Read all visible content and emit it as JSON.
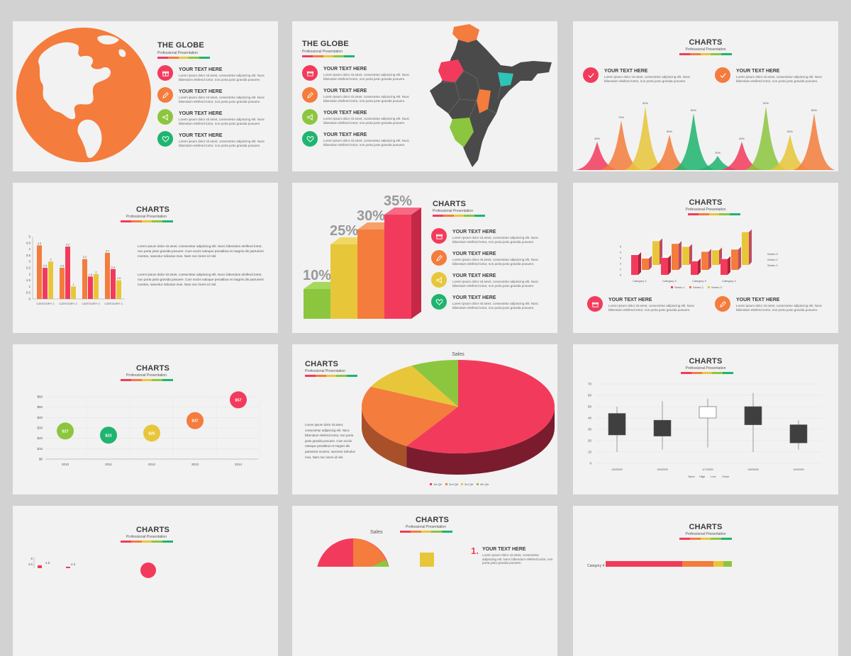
{
  "palette": {
    "red": "#f23b5c",
    "orange": "#f47c3c",
    "yellow": "#e8c63a",
    "green": "#8cc63e",
    "dgreen": "#1fb46f",
    "grey": "#4a4a4a"
  },
  "common": {
    "subtitle": "Professional Presentation",
    "item_title": "YOUR TEXT HERE",
    "item_body": "Lorem ipsum dolor sit amet, consectetur adipiscing elit. Nunc bibendum eleifend tortor, non porta justo gravida posuere.",
    "para": "Lorem ipsum dolor sit amet, consectetur adipiscing elit. Nunc bibendum eleifend tortor, non porta justo gravida posuere. Cum sociis natoque penatibus et magnis dis parturient montes, nascetur ridiculus mus. Nam nec lorem id nisl."
  },
  "slides": {
    "s1": {
      "title": "THE GLOBE"
    },
    "s2": {
      "title": "THE GLOBE"
    },
    "s3": {
      "title": "CHARTS",
      "chart_data": {
        "type": "area",
        "labels": [
          "40%",
          "70%",
          "90%",
          "50%",
          "80%",
          "20%",
          "40%",
          "90%",
          "50%",
          "80%"
        ],
        "values": [
          40,
          70,
          90,
          50,
          80,
          20,
          40,
          90,
          50,
          80
        ]
      }
    },
    "s4": {
      "title": "CHARTS",
      "chart_data": {
        "type": "bar",
        "categories": [
          "CATEGORY 1",
          "CATEGORY 2",
          "CATEGORY 3",
          "CATEGORY 4"
        ],
        "series": [
          {
            "values": [
              4.3,
              2.5,
              3.2,
              3.7
            ]
          },
          {
            "values": [
              2.5,
              4.2,
              1.8,
              2.4
            ]
          },
          {
            "values": [
              3,
              1,
              2,
              1.5
            ]
          }
        ],
        "value_labels": [
          [
            "4.3",
            "2.5",
            "3"
          ],
          [
            "2.5",
            "4.2",
            "1"
          ],
          [
            "3.2",
            "1.8",
            "2"
          ],
          [
            "3.7",
            "2.4",
            "1.5"
          ]
        ],
        "yticks": [
          "5",
          "4.5",
          "4",
          "3.5",
          "3",
          "2.5",
          "2",
          "1.5",
          "1",
          "0.5",
          "0"
        ],
        "ylim": [
          0,
          5
        ]
      }
    },
    "s5": {
      "title": "CHARTS",
      "chart_data": {
        "type": "bar",
        "labels": [
          "10%",
          "25%",
          "30%",
          "35%"
        ],
        "values": [
          10,
          25,
          30,
          35
        ]
      }
    },
    "s6": {
      "title": "CHARTS",
      "chart_data": {
        "type": "bar",
        "categories": [
          "Category 1",
          "Category 2",
          "Category 3",
          "Category 4"
        ],
        "legend": [
          "Series 1",
          "Series 2",
          "Series 3"
        ],
        "yticks": [
          "5",
          "4",
          "3",
          "2",
          "1",
          "0"
        ]
      }
    },
    "s7": {
      "title": "CHARTS",
      "chart_data": {
        "type": "scatter",
        "x": [
          "2010",
          "2011",
          "2012",
          "2013",
          "2014"
        ],
        "values": [
          27,
          23,
          25,
          37,
          57
        ],
        "labels": [
          "$27",
          "$23",
          "$25",
          "$37",
          "$57"
        ],
        "yticks": [
          "$60",
          "$50",
          "$40",
          "$30",
          "$20",
          "$10",
          "$0"
        ],
        "ylim": [
          0,
          60
        ]
      }
    },
    "s8": {
      "title": "CHARTS",
      "chart_data": {
        "type": "pie",
        "title": "Sales",
        "labels": [
          "1st Qtr",
          "2nd Qtr",
          "3rd Qtr",
          "4th Qtr"
        ],
        "values": [
          59,
          23,
          10,
          8
        ]
      }
    },
    "s9": {
      "title": "CHARTS",
      "chart_data": {
        "type": "bar",
        "x": [
          "1/5/2000",
          "1/6/2000",
          "1/7/2000",
          "1/8/2000",
          "1/9/2000"
        ],
        "open": [
          44,
          38,
          40,
          50,
          34
        ],
        "close": [
          25,
          24,
          50,
          34,
          18
        ],
        "high": [
          50,
          55,
          57,
          62,
          38
        ],
        "low": [
          10,
          12,
          14,
          10,
          12
        ],
        "legend": [
          "Open",
          "High",
          "Low",
          "Close"
        ],
        "yticks": [
          "70",
          "60",
          "50",
          "40",
          "30",
          "20",
          "10",
          "0"
        ],
        "ylim": [
          0,
          70
        ]
      }
    },
    "s10": {
      "title": "CHARTS",
      "yticks": [
        "5",
        "4.5",
        "4"
      ],
      "labels": [
        "4.5",
        "4.2"
      ]
    },
    "s11": {
      "title": "CHARTS",
      "chart_title": "Sales",
      "num": "1."
    },
    "s12": {
      "title": "CHARTS",
      "cat": "Category 4"
    }
  }
}
